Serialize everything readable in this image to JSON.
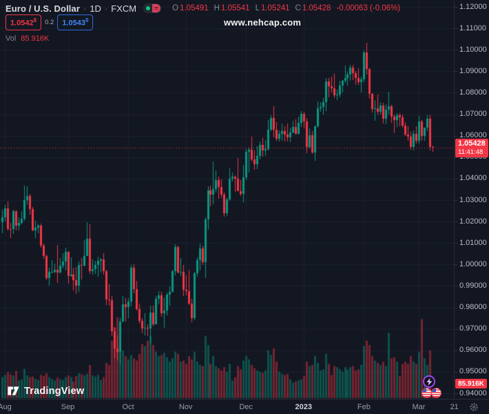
{
  "header": {
    "title_symbol": "Euro / U.S. Dollar",
    "sep": "·",
    "interval": "1D",
    "exchange": "FXCM",
    "ohlc": {
      "open_label": "O",
      "open": "1.05491",
      "high_label": "H",
      "high": "1.05541",
      "low_label": "L",
      "low": "1.05241",
      "close_label": "C",
      "close": "1.05428",
      "change": "-0.00063 (-0.06%)"
    },
    "sell_price": "1.0542",
    "sell_pip": "8",
    "spread": "0.2",
    "buy_price": "1.0543",
    "buy_pip": "0",
    "vol_label": "Vol",
    "vol_value": "85.916K"
  },
  "watermark": "www.nehcap.com",
  "logo_text": "TradingView",
  "price_tag": {
    "price": "1.05428",
    "countdown": "11:41:48"
  },
  "volume_tag": "85.916K",
  "colors": {
    "background": "#131722",
    "grid": "#1c2130",
    "up": "#089981",
    "down": "#f23645",
    "volume_up": "rgba(8,153,129,0.45)",
    "volume_down": "rgba(242,54,69,0.45)",
    "axis_text": "#b8bcc4",
    "last_price_line": "#f23645"
  },
  "chart_data": {
    "type": "candlestick",
    "title": "Euro / U.S. Dollar, 1D, FXCM",
    "legend_position": "top-left",
    "grid": true,
    "y_axis": {
      "min": 0.94,
      "max": 1.12,
      "tick_step": 0.01,
      "tick_labels": [
        "1.12000",
        "1.11000",
        "1.10000",
        "1.09000",
        "1.08000",
        "1.07000",
        "1.06000",
        "1.05000",
        "1.04000",
        "1.03000",
        "1.02000",
        "1.01000",
        "1.00000",
        "0.99000",
        "0.98000",
        "0.97000",
        "0.96000",
        "0.95000",
        "0.94000"
      ]
    },
    "x_axis": {
      "tick_labels": [
        {
          "label": "Aug",
          "index": 1
        },
        {
          "label": "Sep",
          "index": 24
        },
        {
          "label": "Oct",
          "index": 46
        },
        {
          "label": "Nov",
          "index": 67
        },
        {
          "label": "Dec",
          "index": 89
        },
        {
          "label": "2023",
          "index": 110,
          "year": true
        },
        {
          "label": "Feb",
          "index": 132
        },
        {
          "label": "Mar",
          "index": 152
        },
        {
          "label": "21",
          "index": 165
        }
      ]
    },
    "last_price": 1.05428,
    "last_volume_k": 85.916,
    "candles_format": [
      "open",
      "high",
      "low",
      "close",
      "volume_k"
    ],
    "candles": [
      [
        1.0197,
        1.0254,
        1.0145,
        1.0221,
        190
      ],
      [
        1.0221,
        1.0276,
        1.0199,
        1.0261,
        210
      ],
      [
        1.0261,
        1.0294,
        1.0158,
        1.0166,
        235
      ],
      [
        1.0166,
        1.0195,
        1.0123,
        1.0165,
        215
      ],
      [
        1.0165,
        1.0254,
        1.0141,
        1.0247,
        205
      ],
      [
        1.0247,
        1.0253,
        1.016,
        1.0181,
        245
      ],
      [
        1.0181,
        1.0221,
        1.0159,
        1.0193,
        160
      ],
      [
        1.0193,
        1.0249,
        1.0187,
        1.0213,
        170
      ],
      [
        1.0213,
        1.0369,
        1.0202,
        1.0299,
        265
      ],
      [
        1.0299,
        1.0364,
        1.0276,
        1.0319,
        205
      ],
      [
        1.0319,
        1.0329,
        1.0232,
        1.0258,
        190
      ],
      [
        1.0258,
        1.0268,
        1.0154,
        1.016,
        195
      ],
      [
        1.016,
        1.0203,
        1.0124,
        1.0172,
        175
      ],
      [
        1.0172,
        1.0192,
        1.0147,
        1.018,
        165
      ],
      [
        1.018,
        1.0191,
        1.0079,
        1.0088,
        210
      ],
      [
        1.0088,
        1.0098,
        1.0026,
        1.0039,
        200
      ],
      [
        1.0039,
        1.0047,
        0.9926,
        0.9938,
        225
      ],
      [
        0.9938,
        0.9985,
        0.9901,
        0.9966,
        190
      ],
      [
        0.9966,
        1.0019,
        0.9959,
        0.9967,
        175
      ],
      [
        0.9967,
        1.0003,
        0.9958,
        0.9974,
        160
      ],
      [
        0.9974,
        1.009,
        0.9914,
        0.9962,
        185
      ],
      [
        0.9962,
        1.003,
        0.9958,
        0.9996,
        170
      ],
      [
        0.9996,
        1.0054,
        0.9983,
        1.0014,
        165
      ],
      [
        1.0014,
        1.0079,
        0.9972,
        1.0058,
        190
      ],
      [
        1.0058,
        1.0063,
        0.991,
        0.9945,
        205
      ],
      [
        0.9945,
        1.0033,
        0.9944,
        0.9952,
        190
      ],
      [
        0.9952,
        0.9985,
        0.9878,
        0.9926,
        150
      ],
      [
        0.9926,
        0.9987,
        0.9864,
        0.9903,
        200
      ],
      [
        0.9903,
        1.0015,
        0.9874,
        0.9999,
        225
      ],
      [
        0.9999,
        1.0029,
        0.993,
        0.9995,
        215
      ],
      [
        0.9995,
        1.0113,
        0.9993,
        1.0041,
        205
      ],
      [
        1.0041,
        1.0198,
        1.004,
        1.0119,
        220
      ],
      [
        1.0119,
        1.0187,
        0.9955,
        0.997,
        300
      ],
      [
        0.997,
        1.0023,
        0.9954,
        0.9979,
        205
      ],
      [
        0.9979,
        1.0017,
        0.9955,
        0.9999,
        195
      ],
      [
        0.9999,
        1.0036,
        0.9943,
        1.0016,
        210
      ],
      [
        1.0016,
        1.0029,
        0.9964,
        1.0023,
        165
      ],
      [
        1.0023,
        1.0051,
        0.9954,
        0.997,
        190
      ],
      [
        0.997,
        0.9974,
        0.9813,
        0.9838,
        320
      ],
      [
        0.9838,
        0.9907,
        0.9807,
        0.9835,
        300
      ],
      [
        0.9835,
        0.9852,
        0.9667,
        0.969,
        520
      ],
      [
        0.969,
        0.9709,
        0.9565,
        0.9609,
        640
      ],
      [
        0.9609,
        0.967,
        0.9551,
        0.9594,
        730
      ],
      [
        0.9594,
        0.975,
        0.9535,
        0.9734,
        590
      ],
      [
        0.9734,
        0.9853,
        0.9732,
        0.9815,
        430
      ],
      [
        0.9815,
        0.9844,
        0.9733,
        0.9802,
        380
      ],
      [
        0.9802,
        0.9844,
        0.9751,
        0.9826,
        350
      ],
      [
        0.9826,
        0.9999,
        0.9804,
        0.9984,
        390
      ],
      [
        0.9984,
        1.0,
        0.9867,
        0.9884,
        360
      ],
      [
        0.9884,
        0.9925,
        0.9787,
        0.9793,
        340
      ],
      [
        0.9793,
        0.9818,
        0.9726,
        0.9737,
        400
      ],
      [
        0.9737,
        0.975,
        0.9681,
        0.9703,
        490
      ],
      [
        0.9703,
        0.9774,
        0.967,
        0.9706,
        470
      ],
      [
        0.9706,
        0.9721,
        0.9668,
        0.9702,
        520
      ],
      [
        0.9702,
        0.9807,
        0.9632,
        0.9775,
        560
      ],
      [
        0.9775,
        0.9807,
        0.9712,
        0.9721,
        480
      ],
      [
        0.9721,
        0.9854,
        0.9721,
        0.984,
        420
      ],
      [
        0.984,
        0.9876,
        0.9814,
        0.9857,
        380
      ],
      [
        0.9857,
        0.9873,
        0.9756,
        0.9772,
        390
      ],
      [
        0.9772,
        0.9846,
        0.9705,
        0.9785,
        410
      ],
      [
        0.9785,
        0.9868,
        0.9764,
        0.9861,
        370
      ],
      [
        0.9861,
        0.9899,
        0.9808,
        0.9873,
        330
      ],
      [
        0.9873,
        0.9976,
        0.987,
        0.9968,
        360
      ],
      [
        0.9968,
        1.0094,
        0.9951,
        1.0082,
        420
      ],
      [
        1.0082,
        1.0089,
        0.9959,
        0.9963,
        400
      ],
      [
        0.9963,
        1.0029,
        0.9945,
        0.9965,
        330
      ],
      [
        0.9965,
        0.9998,
        0.9853,
        0.9882,
        340
      ],
      [
        0.9882,
        0.9951,
        0.9855,
        0.9876,
        310
      ],
      [
        0.9876,
        0.9976,
        0.9813,
        0.9817,
        380
      ],
      [
        0.9817,
        0.984,
        0.973,
        0.9749,
        350
      ],
      [
        0.9749,
        0.9966,
        0.9741,
        0.9958,
        420
      ],
      [
        0.9958,
        1.0034,
        0.9942,
        1.0021,
        330
      ],
      [
        1.0021,
        1.0096,
        0.9972,
        1.0075,
        300
      ],
      [
        1.0075,
        1.0088,
        0.9998,
        1.0012,
        290
      ],
      [
        1.0012,
        1.0221,
        0.9936,
        1.0209,
        560
      ],
      [
        1.0209,
        1.0364,
        1.0163,
        1.0346,
        480
      ],
      [
        1.0346,
        1.0368,
        1.0271,
        1.0325,
        310
      ],
      [
        1.0325,
        1.0481,
        1.028,
        1.0351,
        380
      ],
      [
        1.0351,
        1.0439,
        1.0334,
        1.0393,
        290
      ],
      [
        1.0393,
        1.041,
        1.0305,
        1.0362,
        270
      ],
      [
        1.0362,
        1.0395,
        1.031,
        1.0325,
        250
      ],
      [
        1.0325,
        1.0336,
        1.0222,
        1.0239,
        280
      ],
      [
        1.0239,
        1.031,
        1.0226,
        1.0303,
        240
      ],
      [
        1.0303,
        1.0448,
        1.0296,
        1.0399,
        310
      ],
      [
        1.0399,
        1.0428,
        1.0386,
        1.041,
        160
      ],
      [
        1.041,
        1.0416,
        1.034,
        1.0399,
        190
      ],
      [
        1.0399,
        1.0497,
        1.0341,
        1.0343,
        290
      ],
      [
        1.0343,
        1.0394,
        1.0319,
        1.0328,
        260
      ],
      [
        1.0328,
        1.0463,
        1.029,
        1.0406,
        340
      ],
      [
        1.0406,
        1.0539,
        1.0393,
        1.0526,
        380
      ],
      [
        1.0526,
        1.0545,
        1.0428,
        1.0535,
        350
      ],
      [
        1.0535,
        1.0595,
        1.0479,
        1.049,
        300
      ],
      [
        1.049,
        1.0533,
        1.0443,
        1.0467,
        270
      ],
      [
        1.0467,
        1.055,
        1.0444,
        1.0507,
        250
      ],
      [
        1.0507,
        1.0574,
        1.049,
        1.0557,
        240
      ],
      [
        1.0557,
        1.0588,
        1.0504,
        1.0531,
        230
      ],
      [
        1.0531,
        1.058,
        1.0506,
        1.0539,
        250
      ],
      [
        1.0539,
        1.0673,
        1.0532,
        1.0629,
        430
      ],
      [
        1.0629,
        1.0695,
        1.0622,
        1.0683,
        390
      ],
      [
        1.0683,
        1.0736,
        1.0594,
        1.0627,
        450
      ],
      [
        1.0627,
        1.0662,
        1.0577,
        1.0585,
        330
      ],
      [
        1.0585,
        1.0624,
        1.0573,
        1.0607,
        240
      ],
      [
        1.0607,
        1.0658,
        1.0576,
        1.0622,
        220
      ],
      [
        1.0622,
        1.0645,
        1.0573,
        1.0604,
        210
      ],
      [
        1.0604,
        1.0657,
        1.0572,
        1.0594,
        220
      ],
      [
        1.0594,
        1.0637,
        1.0571,
        1.0614,
        170
      ],
      [
        1.0614,
        1.067,
        1.0611,
        1.064,
        140
      ],
      [
        1.064,
        1.0675,
        1.0604,
        1.061,
        150
      ],
      [
        1.061,
        1.0689,
        1.0606,
        1.0661,
        160
      ],
      [
        1.0661,
        1.0714,
        1.064,
        1.0703,
        170
      ],
      [
        1.0703,
        1.0713,
        1.0634,
        1.0668,
        200
      ],
      [
        1.0668,
        1.0683,
        1.0519,
        1.0546,
        330
      ],
      [
        1.0546,
        1.0635,
        1.0542,
        1.0603,
        290
      ],
      [
        1.0603,
        1.0621,
        1.0515,
        1.0521,
        300
      ],
      [
        1.0521,
        1.0648,
        1.0483,
        1.0644,
        380
      ],
      [
        1.0644,
        1.076,
        1.0639,
        1.0729,
        320
      ],
      [
        1.0729,
        1.0758,
        1.0711,
        1.0735,
        250
      ],
      [
        1.0735,
        1.0776,
        1.0698,
        1.0756,
        260
      ],
      [
        1.0756,
        1.0868,
        1.0714,
        1.0852,
        400
      ],
      [
        1.0852,
        1.087,
        1.0778,
        1.083,
        310
      ],
      [
        1.083,
        1.0874,
        1.0802,
        1.0822,
        210
      ],
      [
        1.0822,
        1.0887,
        1.0775,
        1.0788,
        290
      ],
      [
        1.0788,
        1.0815,
        1.0766,
        1.0793,
        280
      ],
      [
        1.0793,
        1.0855,
        1.078,
        1.0832,
        260
      ],
      [
        1.0832,
        1.0858,
        1.0802,
        1.0855,
        240
      ],
      [
        1.0855,
        1.0927,
        1.0848,
        1.087,
        280
      ],
      [
        1.087,
        1.0898,
        1.0835,
        1.0886,
        260
      ],
      [
        1.0886,
        1.0929,
        1.0857,
        1.0916,
        280
      ],
      [
        1.0916,
        1.093,
        1.0858,
        1.0891,
        290
      ],
      [
        1.0891,
        1.09,
        1.0838,
        1.0868,
        250
      ],
      [
        1.0868,
        1.0913,
        1.0837,
        1.085,
        260
      ],
      [
        1.085,
        1.0875,
        1.0802,
        1.0863,
        300
      ],
      [
        1.0863,
        1.0998,
        1.0851,
        1.0987,
        470
      ],
      [
        1.0987,
        1.1033,
        1.0885,
        1.091,
        520
      ],
      [
        1.091,
        1.0915,
        1.0771,
        1.0795,
        480
      ],
      [
        1.0795,
        1.0798,
        1.0709,
        1.0725,
        380
      ],
      [
        1.0725,
        1.0766,
        1.0669,
        1.0727,
        340
      ],
      [
        1.0727,
        1.0791,
        1.07,
        1.0711,
        320
      ],
      [
        1.0711,
        1.0758,
        1.0698,
        1.0739,
        300
      ],
      [
        1.0739,
        1.0753,
        1.0656,
        1.0679,
        330
      ],
      [
        1.0679,
        1.0746,
        1.0655,
        1.0722,
        290
      ],
      [
        1.0722,
        1.0805,
        1.0697,
        1.0736,
        590
      ],
      [
        1.0736,
        1.0743,
        1.0659,
        1.069,
        360
      ],
      [
        1.069,
        1.07,
        1.0612,
        1.0673,
        370
      ],
      [
        1.0673,
        1.0706,
        1.0642,
        1.0695,
        330
      ],
      [
        1.0695,
        1.0705,
        1.0644,
        1.0686,
        200
      ],
      [
        1.0686,
        1.0697,
        1.0636,
        1.0648,
        310
      ],
      [
        1.0648,
        1.0663,
        1.0598,
        1.0604,
        330
      ],
      [
        1.0604,
        1.0644,
        1.0577,
        1.0596,
        310
      ],
      [
        1.0596,
        1.0617,
        1.0536,
        1.0546,
        380
      ],
      [
        1.0546,
        1.0626,
        1.0532,
        1.0609,
        330
      ],
      [
        1.0609,
        1.0645,
        1.0565,
        1.0577,
        310
      ],
      [
        1.0577,
        1.0691,
        1.0565,
        1.0665,
        420
      ],
      [
        1.0665,
        1.0674,
        1.0577,
        1.0598,
        715
      ],
      [
        1.0598,
        1.0639,
        1.0575,
        1.0636,
        360
      ],
      [
        1.0636,
        1.0694,
        1.0623,
        1.068,
        300
      ],
      [
        1.068,
        1.0698,
        1.0533,
        1.0546,
        430
      ],
      [
        1.05491,
        1.05541,
        1.05241,
        1.05428,
        85.916
      ]
    ]
  }
}
